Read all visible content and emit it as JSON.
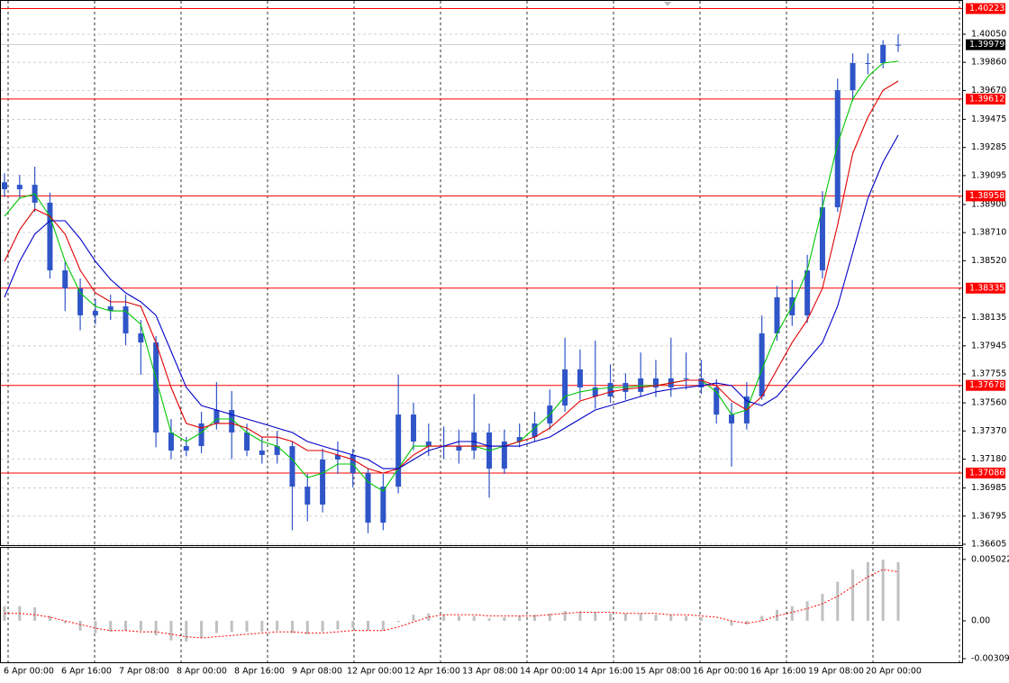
{
  "chart_data": [
    {
      "type": "candlestick",
      "open": [
        1.3905,
        1.39003,
        1.39033,
        1.38912,
        1.38455,
        1.38333,
        1.38151,
        1.38181,
        1.38212,
        1.38029,
        1.37968,
        1.3736,
        1.37238,
        1.37268,
        1.37421,
        1.37512,
        1.3736,
        1.37238,
        1.37208,
        1.37268,
        1.36994,
        1.36873,
        1.37177,
        1.37208,
        1.37086,
        1.36751,
        1.36994,
        1.37481,
        1.37299,
        1.37268,
        1.37268,
        1.37238,
        1.3736,
        1.37116,
        1.37299,
        1.37329,
        1.37421,
        1.37542,
        1.37786,
        1.37664,
        1.37603,
        1.37694,
        1.37634,
        1.37725,
        1.37664,
        1.37725,
        1.37725,
        1.37664,
        1.37481,
        1.37421,
        1.37603,
        1.38029,
        1.38273,
        1.38151,
        1.38455,
        1.38881,
        1.39672,
        1.39855,
        1.39855,
        1.39977
      ],
      "high": [
        1.3911,
        1.391,
        1.39155,
        1.3898,
        1.3852,
        1.384,
        1.3826,
        1.3829,
        1.3829,
        1.3812,
        1.3801,
        1.3745,
        1.3733,
        1.375,
        1.377,
        1.3764,
        1.3742,
        1.3733,
        1.3737,
        1.373,
        1.3708,
        1.3725,
        1.373,
        1.3725,
        1.3712,
        1.3708,
        1.3775,
        1.3756,
        1.3742,
        1.374,
        1.3738,
        1.3762,
        1.3742,
        1.3738,
        1.3742,
        1.375,
        1.3765,
        1.38,
        1.3792,
        1.3798,
        1.3782,
        1.3776,
        1.379,
        1.3785,
        1.38,
        1.379,
        1.3785,
        1.3772,
        1.3756,
        1.377,
        1.3815,
        1.3835,
        1.3839,
        1.3856,
        1.3899,
        1.3975,
        1.3992,
        1.3992,
        1.4001,
        1.4005
      ],
      "low": [
        1.3895,
        1.3894,
        1.3885,
        1.384,
        1.3818,
        1.3805,
        1.3809,
        1.3812,
        1.3795,
        1.3775,
        1.3726,
        1.3718,
        1.372,
        1.3722,
        1.3738,
        1.3718,
        1.372,
        1.3715,
        1.3715,
        1.367,
        1.3676,
        1.3682,
        1.3708,
        1.3699,
        1.3668,
        1.367,
        1.3695,
        1.3724,
        1.372,
        1.3718,
        1.3715,
        1.3718,
        1.3692,
        1.3708,
        1.3726,
        1.373,
        1.3738,
        1.375,
        1.3758,
        1.3752,
        1.3756,
        1.3758,
        1.376,
        1.376,
        1.376,
        1.3765,
        1.3762,
        1.3742,
        1.3713,
        1.3738,
        1.3758,
        1.3798,
        1.3808,
        1.381,
        1.384,
        1.3885,
        1.396,
        1.3978,
        1.3982,
        1.3993
      ],
      "close": [
        1.39003,
        1.39033,
        1.38912,
        1.38455,
        1.38333,
        1.38151,
        1.38181,
        1.38212,
        1.38029,
        1.37968,
        1.3736,
        1.37238,
        1.37268,
        1.37421,
        1.37512,
        1.3736,
        1.37238,
        1.37208,
        1.37268,
        1.36994,
        1.36873,
        1.37177,
        1.37208,
        1.37086,
        1.36751,
        1.36994,
        1.37481,
        1.37299,
        1.37268,
        1.37268,
        1.37238,
        1.3736,
        1.37116,
        1.37299,
        1.37329,
        1.37421,
        1.37542,
        1.37786,
        1.37664,
        1.37603,
        1.37694,
        1.37634,
        1.37725,
        1.37664,
        1.37725,
        1.37725,
        1.37664,
        1.37481,
        1.37421,
        1.37603,
        1.38029,
        1.38273,
        1.38151,
        1.38455,
        1.38881,
        1.39672,
        1.39855,
        1.39855,
        1.39977,
        1.39979
      ],
      "color": "#2f55c8",
      "series": [
        {
          "color": "#00c800",
          "values": [
            1.3882,
            1.38942,
            1.38972,
            1.3882,
            1.38516,
            1.38303,
            1.38212,
            1.38181,
            1.38181,
            1.3809,
            1.37725,
            1.3736,
            1.37299,
            1.3736,
            1.37451,
            1.37451,
            1.3736,
            1.37299,
            1.37268,
            1.37177,
            1.37055,
            1.37086,
            1.37147,
            1.37147,
            1.37025,
            1.36964,
            1.37116,
            1.37268,
            1.37268,
            1.37268,
            1.37268,
            1.37268,
            1.37238,
            1.37268,
            1.37299,
            1.3739,
            1.37481,
            1.37603,
            1.37634,
            1.37652,
            1.37664,
            1.37664,
            1.37676,
            1.37676,
            1.37694,
            1.37713,
            1.37713,
            1.37634,
            1.37481,
            1.37512,
            1.37786,
            1.38029,
            1.38212,
            1.38455,
            1.38881,
            1.39307,
            1.39612,
            1.39764,
            1.39855,
            1.39867
          ]
        },
        {
          "color": "#e00000",
          "values": [
            1.38516,
            1.38729,
            1.38869,
            1.3882,
            1.38699,
            1.38455,
            1.38303,
            1.38242,
            1.38242,
            1.38212,
            1.37968,
            1.37664,
            1.37421,
            1.3739,
            1.37421,
            1.37421,
            1.3739,
            1.37329,
            1.37329,
            1.37299,
            1.37238,
            1.37238,
            1.37208,
            1.37177,
            1.37116,
            1.37086,
            1.37116,
            1.37208,
            1.37268,
            1.37268,
            1.37268,
            1.37268,
            1.37268,
            1.37268,
            1.37299,
            1.37329,
            1.3739,
            1.37481,
            1.37573,
            1.37603,
            1.37634,
            1.37652,
            1.37664,
            1.37676,
            1.37694,
            1.37713,
            1.37713,
            1.37676,
            1.37573,
            1.37512,
            1.37603,
            1.37786,
            1.37968,
            1.3812,
            1.38333,
            1.3876,
            1.39246,
            1.3949,
            1.39672,
            1.39733
          ]
        },
        {
          "color": "#0000c8",
          "values": [
            1.38273,
            1.38516,
            1.38699,
            1.3879,
            1.3879,
            1.38668,
            1.38516,
            1.38394,
            1.38303,
            1.38242,
            1.38151,
            1.37908,
            1.37664,
            1.37542,
            1.37512,
            1.37481,
            1.37451,
            1.37421,
            1.3739,
            1.3736,
            1.37299,
            1.37268,
            1.37238,
            1.37208,
            1.37177,
            1.37116,
            1.37116,
            1.37177,
            1.37238,
            1.37268,
            1.37299,
            1.37299,
            1.37268,
            1.37268,
            1.37268,
            1.37299,
            1.37329,
            1.3739,
            1.37451,
            1.37512,
            1.37542,
            1.37573,
            1.37603,
            1.37634,
            1.37652,
            1.37664,
            1.37676,
            1.37694,
            1.37676,
            1.37573,
            1.37542,
            1.37603,
            1.37725,
            1.37847,
            1.37968,
            1.38212,
            1.38577,
            1.38942,
            1.39186,
            1.39368
          ]
        }
      ],
      "ylim": [
        1.36599,
        1.40281
      ],
      "yticks": [
        {
          "value": 1.4005,
          "label": "1.40050"
        },
        {
          "value": 1.3986,
          "label": "1.39860"
        },
        {
          "value": 1.3967,
          "label": "1.39670"
        },
        1.39475,
        1.39285,
        1.39095,
        {
          "value": 1.389,
          "label": "1.38900"
        },
        {
          "value": 1.3871,
          "label": "1.38710"
        },
        {
          "value": 1.3852,
          "label": "1.38520"
        },
        1.38135,
        1.37945,
        1.37755,
        {
          "value": 1.3756,
          "label": "1.37560"
        },
        {
          "value": 1.3737,
          "label": "1.37370"
        },
        {
          "value": 1.3718,
          "label": "1.37180"
        },
        1.36985,
        1.36795,
        1.36605
      ],
      "levels": [
        1.40223,
        1.39612,
        1.38958,
        1.38335,
        1.37678,
        1.37086
      ],
      "level_color": "#ff0000",
      "last_price": 1.39979,
      "grid": true,
      "xlabels": [
        "6 Apr 00:00",
        "6 Apr 16:00",
        "7 Apr 08:00",
        "8 Apr 00:00",
        "8 Apr 16:00",
        "9 Apr 08:00",
        "12 Apr 00:00",
        "12 Apr 16:00",
        "13 Apr 08:00",
        "14 Apr 00:00",
        "14 Apr 16:00",
        "15 Apr 08:00",
        "16 Apr 00:00",
        "16 Apr 16:00",
        "19 Apr 08:00",
        "20 Apr 00:00"
      ]
    },
    {
      "type": "oscillator",
      "values": [
        0.0012,
        0.0012,
        0.0011,
        0.0004,
        -0.0002,
        -0.0008,
        -0.001,
        -0.0009,
        -0.0008,
        -0.0008,
        -0.0012,
        -0.0016,
        -0.0017,
        -0.0014,
        -0.001,
        -0.0009,
        -0.0009,
        -0.0009,
        -0.0008,
        -0.001,
        -0.0011,
        -0.0009,
        -0.0007,
        -0.0006,
        -0.0008,
        -0.0008,
        -0.0001,
        0.0005,
        0.0006,
        0.0005,
        0.0004,
        0.0004,
        0.0002,
        0.0003,
        0.0004,
        0.0005,
        0.0006,
        0.0008,
        0.0008,
        0.0007,
        0.0006,
        0.0006,
        0.0006,
        0.0005,
        0.0005,
        0.0004,
        0.0003,
        0,
        -0.0004,
        -0.0003,
        0.0004,
        0.0009,
        0.0012,
        0.0016,
        0.0022,
        0.0032,
        0.0042,
        0.0048,
        0.005,
        0.0048
      ],
      "color": "#c0c0c0",
      "signal": {
        "color": "#ff0000",
        "values": [
          0.0006,
          0.0006,
          0.0005,
          0.0003,
          0,
          -0.0003,
          -0.0006,
          -0.0008,
          -0.0008,
          -0.0009,
          -0.0009,
          -0.0011,
          -0.0013,
          -0.0014,
          -0.0013,
          -0.0012,
          -0.0011,
          -0.001,
          -0.0009,
          -0.0009,
          -0.001,
          -0.001,
          -0.0009,
          -0.0008,
          -0.0008,
          -0.0008,
          -0.0005,
          -0.0001,
          0.0003,
          0.0005,
          0.0005,
          0.0005,
          0.0004,
          0.0004,
          0.0004,
          0.0004,
          0.0005,
          0.0006,
          0.0007,
          0.0007,
          0.0007,
          0.0006,
          0.0006,
          0.0006,
          0.0005,
          0.0005,
          0.0004,
          0.0003,
          0,
          -0.0002,
          0,
          0.0004,
          0.0007,
          0.001,
          0.0014,
          0.002,
          0.0028,
          0.0036,
          0.0042,
          0.004
        ]
      },
      "ylim": [
        -0.003096,
        0.0056
      ],
      "yticks": [
        0.005022,
        {
          "value": 0,
          "label": "0.00"
        },
        -0.003096
      ]
    }
  ]
}
